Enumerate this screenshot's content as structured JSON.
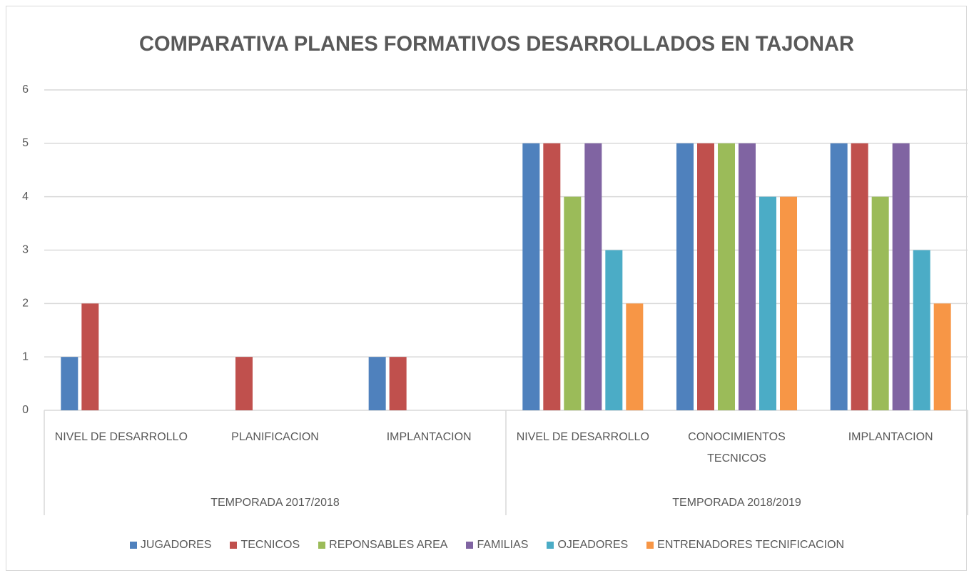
{
  "chart_data": {
    "type": "bar",
    "title": "COMPARATIVA PLANES FORMATIVOS DESARROLLADOS EN TAJONAR",
    "groups": [
      {
        "name": "TEMPORADA 2017/2018",
        "categories": [
          "NIVEL DE DESARROLLO",
          "PLANIFICACION",
          "IMPLANTACION"
        ]
      },
      {
        "name": "TEMPORADA 2018/2019",
        "categories": [
          "NIVEL DE DESARROLLO",
          "CONOCIMIENTOS TECNICOS",
          "IMPLANTACION"
        ]
      }
    ],
    "series": [
      {
        "name": "JUGADORES",
        "color": "#4f81bd",
        "values": [
          1,
          0,
          1,
          5,
          5,
          5
        ]
      },
      {
        "name": "TECNICOS",
        "color": "#c0504d",
        "values": [
          2,
          1,
          1,
          5,
          5,
          5
        ]
      },
      {
        "name": "REPONSABLES AREA",
        "color": "#9bbb59",
        "values": [
          0,
          0,
          0,
          4,
          5,
          4
        ]
      },
      {
        "name": "FAMILIAS",
        "color": "#8064a2",
        "values": [
          0,
          0,
          0,
          5,
          5,
          5
        ]
      },
      {
        "name": "OJEADORES",
        "color": "#4bacc6",
        "values": [
          0,
          0,
          0,
          3,
          4,
          3
        ]
      },
      {
        "name": "ENTRENADORES TECNIFICACION",
        "color": "#f79646",
        "values": [
          0,
          0,
          0,
          2,
          4,
          2
        ]
      }
    ],
    "ylim": [
      0,
      6
    ],
    "yticks": [
      0,
      1,
      2,
      3,
      4,
      5,
      6
    ],
    "grid": true,
    "legend": "bottom"
  }
}
